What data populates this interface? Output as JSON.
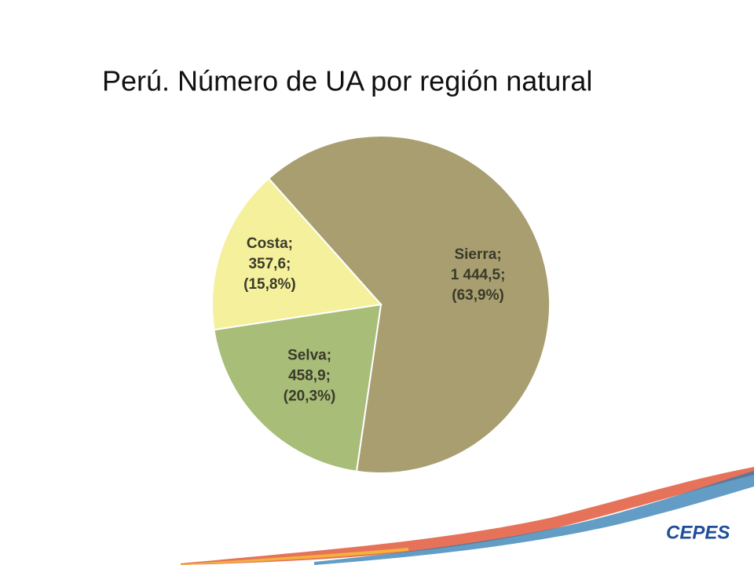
{
  "chart_data": {
    "type": "pie",
    "title": "Perú. Número de UA por región natural",
    "categories": [
      "Sierra;",
      "Selva;",
      "Costa;"
    ],
    "values": [
      1444.5,
      458.9,
      357.6
    ],
    "value_labels": [
      "1 444,5;",
      "458,9;",
      "357,6;"
    ],
    "percentages": [
      63.9,
      20.3,
      15.8
    ],
    "percentage_labels": [
      "(63,9%)",
      "(20,3%)",
      "(15,8%)"
    ],
    "colors": [
      "#a89e70",
      "#a8bd78",
      "#f4f09c"
    ]
  },
  "logo": "CEPES"
}
